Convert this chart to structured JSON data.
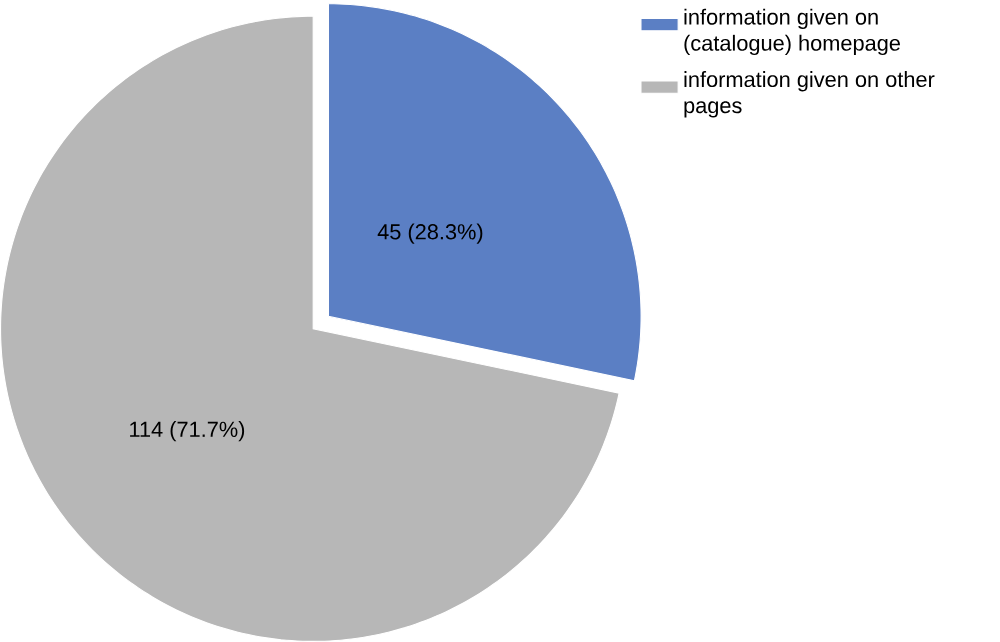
{
  "chart_data": {
    "type": "pie",
    "categories": [
      "information given on (catalogue) homepage",
      "information given on other pages"
    ],
    "values": [
      45,
      114
    ],
    "colors": [
      "#5b7fc4",
      "#b7b7b7"
    ],
    "value_labels": [
      "45 (28.3%)",
      "114 (71.7%)"
    ],
    "legend": "top right"
  }
}
